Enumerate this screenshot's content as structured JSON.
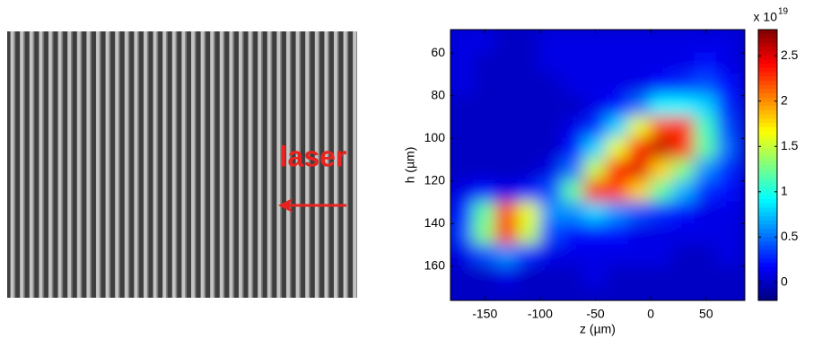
{
  "left_panel": {
    "label": "laser"
  },
  "chart_data": [
    {
      "type": "heatmap",
      "xlabel": "z (µm)",
      "ylabel": "h (µm)",
      "xlim": [
        -181,
        85
      ],
      "xticks": [
        -150,
        -100,
        -50,
        0,
        50
      ],
      "ylim": [
        49,
        176
      ],
      "yticks": [
        60,
        80,
        100,
        120,
        140,
        160
      ],
      "y_reversed": true,
      "x": [
        -170,
        -150,
        -130,
        -110,
        -90,
        -70,
        -50,
        -30,
        -10,
        10,
        30,
        50,
        70
      ],
      "y": [
        55,
        65,
        75,
        85,
        95,
        105,
        115,
        125,
        135,
        145,
        155,
        165,
        175
      ],
      "z": [
        [
          0.1,
          0.1,
          0,
          0,
          0.1,
          0.1,
          0.1,
          0.1,
          0.1,
          0.1,
          0.1,
          0.1,
          0.1
        ],
        [
          0.1,
          0,
          0,
          0,
          0.1,
          0.1,
          0.1,
          0.1,
          0.1,
          0.1,
          0.1,
          0.2,
          0.1
        ],
        [
          0.1,
          0,
          0,
          0,
          0,
          0.1,
          0.1,
          0.1,
          0.1,
          0.2,
          0.3,
          0.4,
          0.2
        ],
        [
          0,
          0,
          0,
          0,
          0,
          0,
          0.1,
          0.2,
          0.5,
          0.9,
          0.9,
          0.8,
          0.3
        ],
        [
          0,
          0,
          0,
          0,
          0,
          0.1,
          0.3,
          0.8,
          1.6,
          2.2,
          2.3,
          1.1,
          0.4
        ],
        [
          0,
          0,
          0,
          0,
          0,
          0.2,
          0.8,
          1.6,
          2.4,
          2.6,
          2.3,
          1.2,
          0.5
        ],
        [
          0,
          0,
          0,
          0,
          0.1,
          0.5,
          1.5,
          2.4,
          2.5,
          1.8,
          1.3,
          0.6,
          0.3
        ],
        [
          0.1,
          0.2,
          0.1,
          0.2,
          0.4,
          1.2,
          2.4,
          2.2,
          1.8,
          1.2,
          0.7,
          0.3,
          0.2
        ],
        [
          0.3,
          1.2,
          2.2,
          1.6,
          0.6,
          0.6,
          0.8,
          0.6,
          0.4,
          0.3,
          0.2,
          0.1,
          0.1
        ],
        [
          0.4,
          1.3,
          2.3,
          1.5,
          0.4,
          0.2,
          0.2,
          0.2,
          0.1,
          0.1,
          0.1,
          0.1,
          0.1
        ],
        [
          0.1,
          0.4,
          0.6,
          0.3,
          0.1,
          0.1,
          0.1,
          0.1,
          0.1,
          0.1,
          0,
          0,
          0.1
        ],
        [
          0,
          0,
          0.1,
          0,
          0,
          0,
          0.1,
          0,
          0,
          0,
          0,
          0,
          0
        ],
        [
          0,
          0,
          0,
          0,
          0,
          0,
          0,
          0,
          0,
          0,
          0,
          0,
          0
        ]
      ],
      "colormap": "jet",
      "clim": [
        -0.2,
        2.79
      ],
      "cticks": [
        0,
        0.5,
        1,
        1.5,
        2,
        2.5
      ],
      "colorbar_label": "x 10",
      "colorbar_exponent": "19"
    }
  ]
}
